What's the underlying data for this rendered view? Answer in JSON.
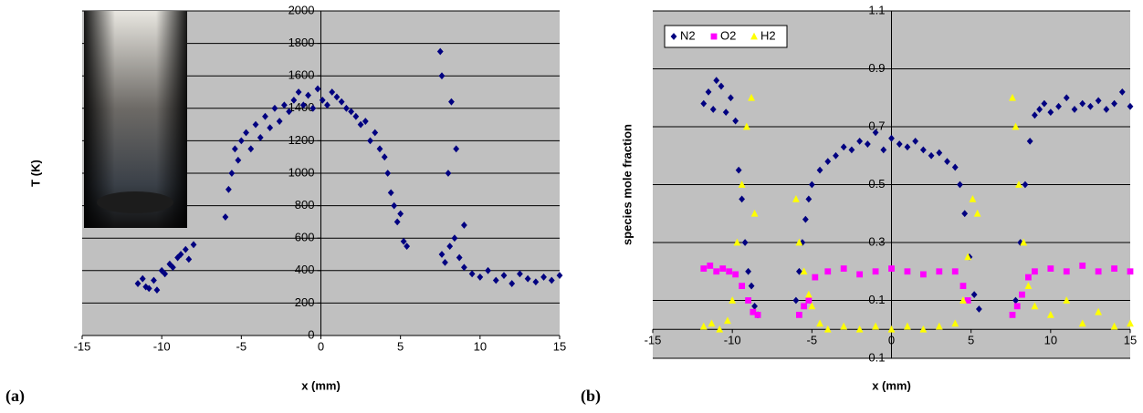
{
  "chart_data": [
    {
      "type": "scatter",
      "label": "(a)",
      "xlabel": "x (mm)",
      "ylabel": "T (K)",
      "color": "#000080",
      "marker": "diamond",
      "xlim": [
        -15,
        15
      ],
      "ylim": [
        0,
        2000
      ],
      "xticks": [
        -15,
        -10,
        -5,
        0,
        5,
        10,
        15
      ],
      "yticks": [
        0,
        200,
        400,
        600,
        800,
        1000,
        1200,
        1400,
        1600,
        1800,
        2000
      ],
      "grid": true,
      "x": [
        -11.5,
        -11.2,
        -11,
        -10.8,
        -10.5,
        -10.3,
        -10,
        -9.8,
        -9.5,
        -9.3,
        -9,
        -8.8,
        -8.5,
        -8.3,
        -8,
        -6,
        -5.8,
        -5.6,
        -5.4,
        -5.2,
        -5,
        -4.7,
        -4.4,
        -4.1,
        -3.8,
        -3.5,
        -3.2,
        -2.9,
        -2.6,
        -2.3,
        -2,
        -1.7,
        -1.4,
        -1.1,
        -0.8,
        -0.5,
        -0.2,
        0.1,
        0.4,
        0.7,
        1,
        1.3,
        1.6,
        1.9,
        2.2,
        2.5,
        2.8,
        3.1,
        3.4,
        3.7,
        4,
        4.2,
        4.4,
        4.6,
        4.8,
        5,
        5.2,
        5.4,
        7.5,
        7.6,
        8,
        8.2,
        8.5,
        9,
        7.6,
        7.8,
        8.1,
        8.4,
        8.7,
        9,
        9.5,
        10,
        10.5,
        11,
        11.5,
        12,
        12.5,
        13,
        13.5,
        14,
        14.5,
        15
      ],
      "values": [
        320,
        350,
        300,
        290,
        340,
        280,
        400,
        380,
        440,
        420,
        480,
        500,
        530,
        470,
        560,
        730,
        900,
        1000,
        1150,
        1080,
        1200,
        1250,
        1150,
        1300,
        1220,
        1350,
        1280,
        1400,
        1320,
        1420,
        1380,
        1450,
        1500,
        1420,
        1480,
        1400,
        1520,
        1450,
        1420,
        1500,
        1470,
        1440,
        1400,
        1380,
        1350,
        1300,
        1320,
        1200,
        1250,
        1150,
        1100,
        1000,
        880,
        800,
        700,
        750,
        580,
        550,
        1750,
        1600,
        1000,
        1440,
        1150,
        680,
        500,
        450,
        550,
        600,
        480,
        420,
        380,
        360,
        400,
        340,
        370,
        320,
        380,
        350,
        330,
        360,
        340,
        370
      ]
    },
    {
      "type": "scatter",
      "label": "(b)",
      "xlabel": "x (mm)",
      "ylabel": "species mole fraction",
      "legend": "upper left",
      "xlim": [
        -15,
        15
      ],
      "ylim": [
        -0.1,
        1.1
      ],
      "xticks": [
        -15,
        -10,
        -5,
        0,
        5,
        10,
        15
      ],
      "yticks": [
        -0.1,
        0.1,
        0.3,
        0.5,
        0.7,
        0.9,
        1.1
      ],
      "grid": true,
      "series": [
        {
          "name": "N2",
          "color": "#000080",
          "marker": "diamond",
          "x": [
            -11.8,
            -11.5,
            -11.2,
            -11,
            -10.7,
            -10.4,
            -10.1,
            -9.8,
            -9.6,
            -9.4,
            -9.2,
            -9,
            -8.8,
            -8.6,
            -8.4,
            -6,
            -5.8,
            -5.6,
            -5.4,
            -5.2,
            -5,
            -4.5,
            -4,
            -3.5,
            -3,
            -2.5,
            -2,
            -1.5,
            -1,
            -0.5,
            0,
            0.5,
            1,
            1.5,
            2,
            2.5,
            3,
            3.5,
            4,
            4.3,
            4.6,
            4.9,
            5.2,
            5.5,
            7.8,
            8.1,
            8.4,
            8.7,
            9,
            9.3,
            9.6,
            10,
            10.5,
            11,
            11.5,
            12,
            12.5,
            13,
            13.5,
            14,
            14.5,
            15
          ],
          "values": [
            0.78,
            0.82,
            0.76,
            0.86,
            0.84,
            0.75,
            0.8,
            0.72,
            0.55,
            0.45,
            0.3,
            0.2,
            0.15,
            0.08,
            0.05,
            0.1,
            0.2,
            0.3,
            0.38,
            0.45,
            0.5,
            0.55,
            0.58,
            0.6,
            0.63,
            0.62,
            0.65,
            0.64,
            0.68,
            0.62,
            0.66,
            0.64,
            0.63,
            0.65,
            0.62,
            0.6,
            0.61,
            0.58,
            0.56,
            0.5,
            0.4,
            0.25,
            0.12,
            0.07,
            0.1,
            0.3,
            0.5,
            0.65,
            0.74,
            0.76,
            0.78,
            0.75,
            0.77,
            0.8,
            0.76,
            0.78,
            0.77,
            0.79,
            0.76,
            0.78,
            0.82,
            0.77
          ]
        },
        {
          "name": "O2",
          "color": "#ff00ff",
          "marker": "square",
          "x": [
            -11.8,
            -11.4,
            -11,
            -10.6,
            -10.2,
            -9.8,
            -9.4,
            -9,
            -8.7,
            -8.4,
            -5.8,
            -5.5,
            -5.2,
            -4.8,
            -4,
            -3,
            -2,
            -1,
            0,
            1,
            2,
            3,
            4,
            4.5,
            4.8,
            7.6,
            7.9,
            8.2,
            8.6,
            9,
            10,
            11,
            12,
            13,
            14,
            15
          ],
          "values": [
            0.21,
            0.22,
            0.2,
            0.21,
            0.2,
            0.19,
            0.15,
            0.1,
            0.06,
            0.05,
            0.05,
            0.08,
            0.1,
            0.18,
            0.2,
            0.21,
            0.19,
            0.2,
            0.21,
            0.2,
            0.19,
            0.2,
            0.2,
            0.15,
            0.1,
            0.05,
            0.08,
            0.12,
            0.18,
            0.2,
            0.21,
            0.2,
            0.22,
            0.2,
            0.21,
            0.2
          ]
        },
        {
          "name": "H2",
          "color": "#ffff00",
          "marker": "triangle",
          "x": [
            -11.8,
            -11.3,
            -10.8,
            -10.3,
            -10,
            -9.7,
            -9.4,
            -9.1,
            -8.8,
            -8.6,
            -6,
            -5.8,
            -5.5,
            -5.2,
            -5,
            -4.5,
            -4,
            -3,
            -2,
            -1,
            0,
            1,
            2,
            3,
            4,
            4.5,
            4.8,
            5.1,
            5.4,
            7.6,
            7.8,
            8,
            8.3,
            8.6,
            9,
            10,
            11,
            12,
            13,
            14,
            15
          ],
          "values": [
            0.01,
            0.02,
            0,
            0.03,
            0.1,
            0.3,
            0.5,
            0.7,
            0.8,
            0.4,
            0.45,
            0.3,
            0.2,
            0.12,
            0.08,
            0.02,
            0,
            0.01,
            0,
            0.01,
            0,
            0.01,
            0,
            0.01,
            0.02,
            0.1,
            0.25,
            0.45,
            0.4,
            0.8,
            0.7,
            0.5,
            0.3,
            0.15,
            0.08,
            0.05,
            0.1,
            0.02,
            0.06,
            0.01,
            0.02
          ]
        }
      ]
    }
  ]
}
